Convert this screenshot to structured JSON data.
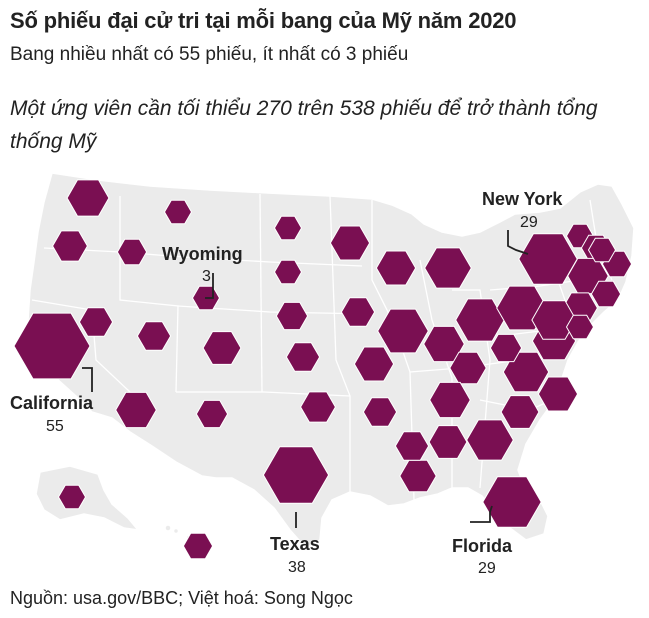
{
  "title": "Số phiếu đại cử tri tại mỗi bang của Mỹ năm 2020",
  "subtitle": "Bang nhiều nhất có 55 phiếu, ít nhất có 3 phiếu",
  "note": "Một ứng viên cần tối thiểu 270 trên 538 phiếu để trở thành tổng thống Mỹ",
  "source": "Nguồn: usa.gov/BBC; Việt hoá: Song Ngọc",
  "colors": {
    "hexagon": "#7a0f52",
    "land": "#ebebeb",
    "border": "#ffffff"
  },
  "callouts": {
    "california": {
      "name": "California",
      "votes": "55"
    },
    "wyoming": {
      "name": "Wyoming",
      "votes": "3"
    },
    "new_york": {
      "name": "New York",
      "votes": "29"
    },
    "texas": {
      "name": "Texas",
      "votes": "38"
    },
    "florida": {
      "name": "Florida",
      "votes": "29"
    }
  },
  "state_votes": [
    {
      "state": "WA",
      "votes": 12
    },
    {
      "state": "OR",
      "votes": 7
    },
    {
      "state": "CA",
      "votes": 55
    },
    {
      "state": "ID",
      "votes": 4
    },
    {
      "state": "NV",
      "votes": 6
    },
    {
      "state": "MT",
      "votes": 3
    },
    {
      "state": "WY",
      "votes": 3
    },
    {
      "state": "UT",
      "votes": 6
    },
    {
      "state": "AZ",
      "votes": 11
    },
    {
      "state": "CO",
      "votes": 9
    },
    {
      "state": "NM",
      "votes": 5
    },
    {
      "state": "ND",
      "votes": 3
    },
    {
      "state": "SD",
      "votes": 3
    },
    {
      "state": "NE",
      "votes": 5
    },
    {
      "state": "KS",
      "votes": 6
    },
    {
      "state": "OK",
      "votes": 7
    },
    {
      "state": "TX",
      "votes": 38
    },
    {
      "state": "MN",
      "votes": 10
    },
    {
      "state": "IA",
      "votes": 6
    },
    {
      "state": "MO",
      "votes": 10
    },
    {
      "state": "AR",
      "votes": 6
    },
    {
      "state": "LA",
      "votes": 8
    },
    {
      "state": "WI",
      "votes": 10
    },
    {
      "state": "IL",
      "votes": 20
    },
    {
      "state": "MI",
      "votes": 16
    },
    {
      "state": "IN",
      "votes": 11
    },
    {
      "state": "OH",
      "votes": 18
    },
    {
      "state": "KY",
      "votes": 8
    },
    {
      "state": "TN",
      "votes": 11
    },
    {
      "state": "MS",
      "votes": 6
    },
    {
      "state": "AL",
      "votes": 9
    },
    {
      "state": "GA",
      "votes": 16
    },
    {
      "state": "FL",
      "votes": 29
    },
    {
      "state": "SC",
      "votes": 9
    },
    {
      "state": "NC",
      "votes": 15
    },
    {
      "state": "VA",
      "votes": 13
    },
    {
      "state": "WV",
      "votes": 5
    },
    {
      "state": "PA",
      "votes": 20
    },
    {
      "state": "NY",
      "votes": 29
    },
    {
      "state": "VT",
      "votes": 3
    },
    {
      "state": "NH",
      "votes": 4
    },
    {
      "state": "ME",
      "votes": 4
    },
    {
      "state": "MA",
      "votes": 11
    },
    {
      "state": "RI",
      "votes": 4
    },
    {
      "state": "CT",
      "votes": 7
    },
    {
      "state": "NJ",
      "votes": 14
    },
    {
      "state": "DE",
      "votes": 3
    },
    {
      "state": "MD",
      "votes": 10
    },
    {
      "state": "DC",
      "votes": 3
    },
    {
      "state": "AK",
      "votes": 3
    },
    {
      "state": "HI",
      "votes": 4
    }
  ]
}
